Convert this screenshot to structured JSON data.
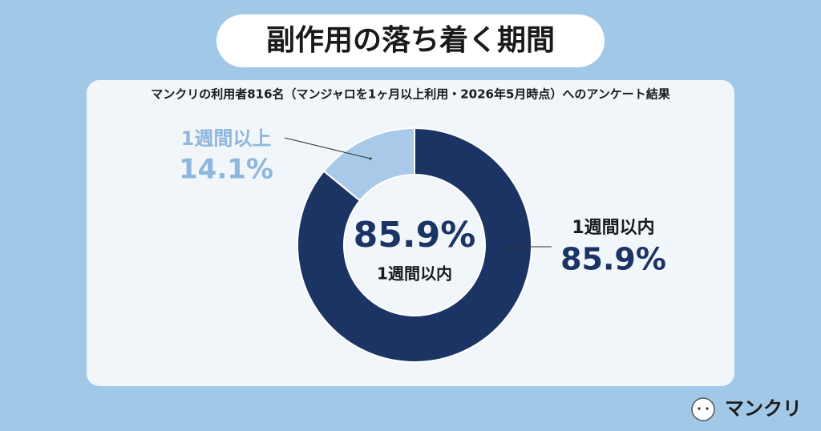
{
  "chart_data": {
    "type": "donut",
    "title": "副作用の落ち着く期間",
    "subtitle": "マンクリの利用者816名（マンジャロを1ヶ月以上利用・2026年5月時点）へのアンケート結果",
    "categories": [
      "1週間以内",
      "1週間以上"
    ],
    "values": [
      85.9,
      14.1
    ],
    "value_labels": [
      "85.9%",
      "14.1%"
    ],
    "colors": [
      "#1b3463",
      "#a9c9e8"
    ],
    "label_colors": [
      "#1b3463",
      "#8fb6dc"
    ]
  },
  "brand": "マンクリ"
}
